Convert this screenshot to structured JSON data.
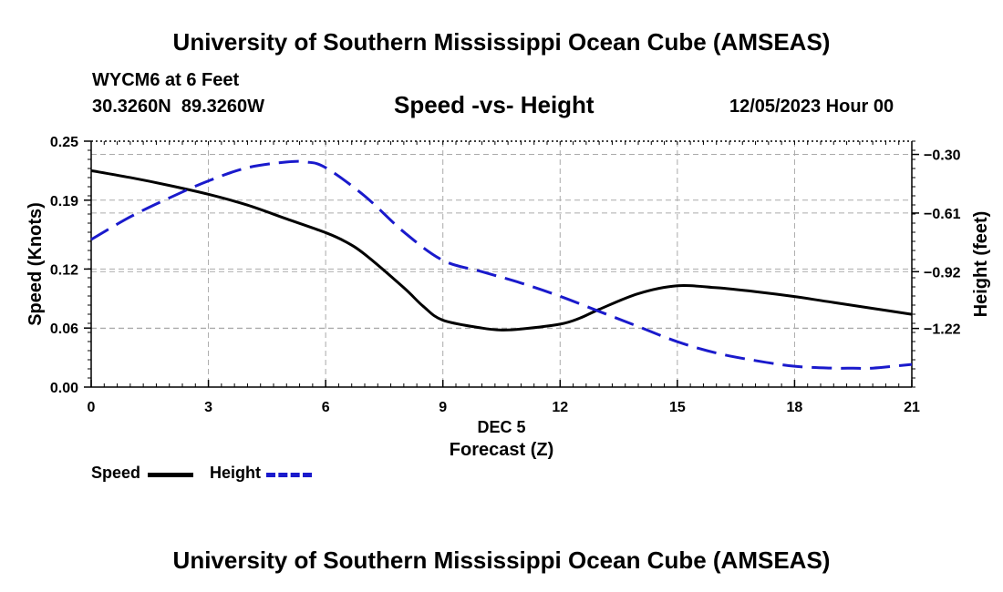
{
  "header": {
    "title_top": "University of Southern Mississippi Ocean Cube (AMSEAS)",
    "title_bottom": "University of Southern Mississippi Ocean Cube (AMSEAS)",
    "station": "WYCM6 at 6 Feet",
    "coords": "30.3260N  89.3260W",
    "datetime": "12/05/2023 Hour 00"
  },
  "colors": {
    "speed": "#000000",
    "height": "#1a1acc",
    "grid": "#aaaaaa"
  },
  "chart_data": {
    "type": "line",
    "title": "Speed -vs- Height",
    "xlabel": "Forecast (Z)",
    "xlabel_date": "DEC 5",
    "ylabel_left": "Speed (Knots)",
    "ylabel_right": "Height (feet)",
    "xlim": [
      0,
      21
    ],
    "ylim_left": [
      0,
      0.25
    ],
    "ylim_right": [
      -1.53,
      -0.23
    ],
    "x_ticks": [
      0,
      3,
      6,
      9,
      12,
      15,
      18,
      21
    ],
    "x_tick_labels": [
      "0",
      "3",
      "6",
      "9",
      "12",
      "15",
      "18",
      "21"
    ],
    "y_left_ticks": [
      0.0,
      0.06,
      0.12,
      0.19,
      0.25
    ],
    "y_left_tick_labels": [
      "0.00",
      "0.06",
      "0.12",
      "0.19",
      "0.25"
    ],
    "y_right_ticks": [
      -0.3,
      -0.61,
      -0.92,
      -1.22
    ],
    "y_right_tick_labels": [
      "−0.30",
      "−0.61",
      "−0.92",
      "−1.22"
    ],
    "grid": true,
    "legend": {
      "placement": "bottom-left",
      "speed_label": "Speed",
      "height_label": "Height"
    },
    "series": [
      {
        "name": "Speed",
        "axis": "left",
        "style": "solid",
        "x": [
          0,
          1,
          2,
          3,
          4,
          5,
          6,
          6.5,
          7,
          8,
          8.5,
          9,
          10,
          10.5,
          11,
          12,
          12.5,
          13,
          14,
          15,
          16,
          17,
          18,
          19,
          20,
          21
        ],
        "values": [
          0.22,
          0.213,
          0.205,
          0.196,
          0.185,
          0.171,
          0.157,
          0.148,
          0.135,
          0.101,
          0.082,
          0.068,
          0.06,
          0.058,
          0.059,
          0.064,
          0.07,
          0.079,
          0.095,
          0.103,
          0.101,
          0.097,
          0.092,
          0.086,
          0.08,
          0.074
        ]
      },
      {
        "name": "Height",
        "axis": "right",
        "style": "dashed",
        "x": [
          0,
          1,
          2,
          3,
          4,
          5,
          5.5,
          6,
          7,
          8,
          9,
          10,
          11,
          12,
          13,
          14,
          15,
          16,
          17,
          18,
          19,
          19.5,
          20,
          21
        ],
        "values": [
          -0.75,
          -0.63,
          -0.53,
          -0.44,
          -0.37,
          -0.34,
          -0.34,
          -0.37,
          -0.52,
          -0.71,
          -0.86,
          -0.92,
          -0.98,
          -1.05,
          -1.13,
          -1.21,
          -1.29,
          -1.35,
          -1.39,
          -1.42,
          -1.43,
          -1.43,
          -1.43,
          -1.41
        ]
      }
    ]
  }
}
